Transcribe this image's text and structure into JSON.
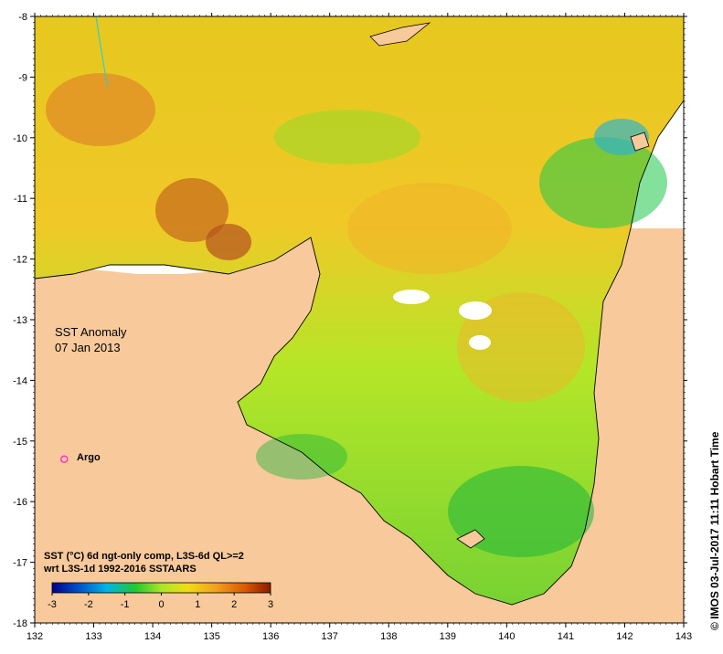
{
  "map": {
    "title_line1": "SST Anomaly",
    "title_line2": "07 Jan 2013",
    "marker_label": "Argo",
    "credit": "© IMOS 03-Jul-2017 11:11 Hobart Time",
    "colors": {
      "land": "#f7c99b",
      "nodata": "#ffffff",
      "frame": "#000000",
      "argo": "#ff33cc",
      "river": "#33cccc"
    }
  },
  "axes": {
    "x_ticks": [
      "132",
      "133",
      "134",
      "135",
      "136",
      "137",
      "138",
      "139",
      "140",
      "141",
      "142",
      "143"
    ],
    "y_ticks": [
      "-8",
      "-9",
      "-10",
      "-11",
      "-12",
      "-13",
      "-14",
      "-15",
      "-16",
      "-17",
      "-18"
    ],
    "xlim": [
      132,
      143
    ],
    "ylim": [
      -18,
      -8
    ]
  },
  "legend": {
    "line1": "SST (°C) 6d ngt-only comp, L3S-6d QL>=2",
    "line2": "wrt L3S-1d 1992-2016 SSTAARS",
    "tick_labels": [
      "-3",
      "-2",
      "-1",
      "0",
      "1",
      "2",
      "3"
    ],
    "range": [
      -3,
      3
    ],
    "gradient": [
      "#00008b",
      "#0050c8",
      "#00b4e6",
      "#1ec832",
      "#aae628",
      "#f0dc14",
      "#f0a01e",
      "#dc5a00",
      "#8b1a00"
    ]
  },
  "chart_data": {
    "type": "map",
    "markers": [
      {
        "name": "Argo",
        "lon": 132.5,
        "lat": -15.3
      }
    ]
  }
}
